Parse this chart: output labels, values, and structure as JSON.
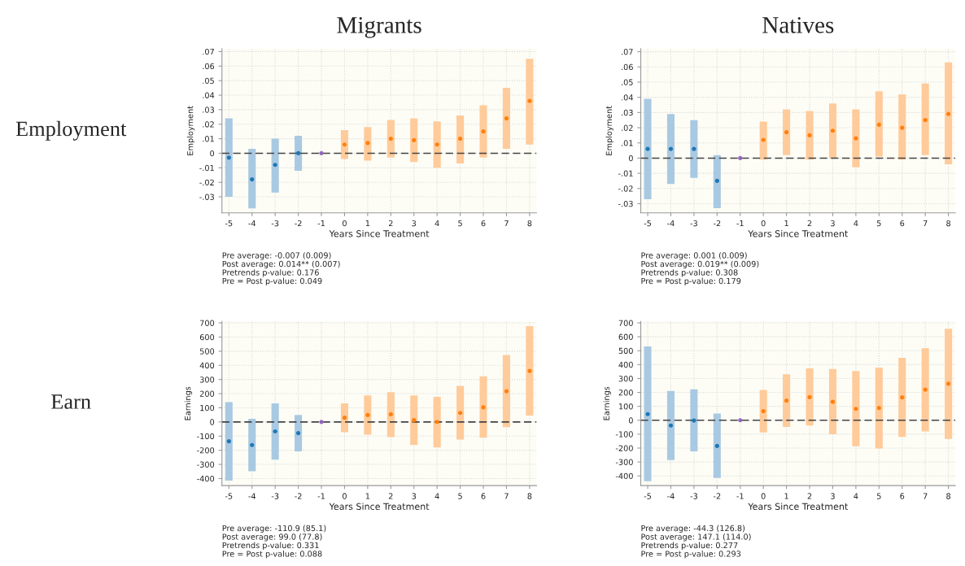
{
  "chart_data": [
    {
      "type": "bar",
      "title": "Migrants",
      "subtitle": "Employment",
      "xlabel": "Years Since Treatment",
      "ylabel": "Employment",
      "xlim": [
        -5.3,
        8.3
      ],
      "xticks": [
        -5,
        -4,
        -3,
        -2,
        -1,
        0,
        1,
        2,
        3,
        4,
        5,
        6,
        7,
        8
      ],
      "ylim": [
        -0.041,
        0.072
      ],
      "yticks": [
        {
          "value": -0.03,
          "label": "-.03"
        },
        {
          "value": -0.02,
          "label": "-.02"
        },
        {
          "value": -0.01,
          "label": "-.01"
        },
        0,
        {
          "value": 0.01,
          "label": ".01"
        },
        {
          "value": 0.02,
          "label": ".02"
        },
        {
          "value": 0.03,
          "label": ".03"
        },
        {
          "value": 0.04,
          "label": ".04"
        },
        {
          "value": 0.05,
          "label": ".05"
        },
        {
          "value": 0.06,
          "label": ".06"
        },
        {
          "value": 0.07,
          "label": ".07"
        }
      ],
      "grid": true,
      "marker": "circle",
      "ref_lines": [
        {
          "axis": "y",
          "value": 0,
          "color": "#444444",
          "line_style": "dashed"
        }
      ],
      "series": [
        {
          "color": "#a9c9e2",
          "x": [
            -5,
            -4,
            -3,
            -2
          ],
          "base": [
            -0.03,
            -0.038,
            -0.027,
            -0.012
          ],
          "values": [
            0.054,
            0.041,
            0.037,
            0.024
          ]
        },
        {
          "color": "#ffcb9a",
          "x": [
            0,
            1,
            2,
            3,
            4,
            5,
            6,
            7,
            8
          ],
          "base": [
            -0.004,
            -0.005,
            -0.003,
            -0.006,
            -0.01,
            -0.007,
            -0.003,
            0.003,
            0.006
          ],
          "values": [
            0.02,
            0.023,
            0.026,
            0.03,
            0.032,
            0.033,
            0.036,
            0.042,
            0.059
          ]
        },
        {
          "type": "scatter",
          "color": "#1f77b4",
          "x": [
            -5,
            -4,
            -3,
            -2
          ],
          "values": [
            -0.003,
            -0.018,
            -0.008,
            0.0
          ]
        },
        {
          "type": "scatter",
          "color": "#9467bd",
          "x": [
            -1
          ],
          "values": [
            0
          ]
        },
        {
          "type": "scatter",
          "color": "#ff7f0e",
          "x": [
            0,
            1,
            2,
            3,
            4,
            5,
            6,
            7,
            8
          ],
          "values": [
            0.006,
            0.007,
            0.01,
            0.009,
            0.006,
            0.01,
            0.015,
            0.024,
            0.036
          ]
        }
      ],
      "annotations": [
        "Pre average: -0.007 (0.009)",
        "Post average: 0.014** (0.007)",
        "Pretrends p-value: 0.176",
        "Pre = Post p-value: 0.049"
      ]
    },
    {
      "type": "bar",
      "title": "Natives",
      "xlabel": "Years Since Treatment",
      "ylabel": "Employment",
      "xlim": [
        -5.3,
        8.3
      ],
      "xticks": [
        -5,
        -4,
        -3,
        -2,
        -1,
        0,
        1,
        2,
        3,
        4,
        5,
        6,
        7,
        8
      ],
      "ylim": [
        -0.036,
        0.072
      ],
      "yticks": [
        {
          "value": -0.03,
          "label": "-.03"
        },
        {
          "value": -0.02,
          "label": "-.02"
        },
        {
          "value": -0.01,
          "label": "-.01"
        },
        0,
        {
          "value": 0.01,
          "label": ".01"
        },
        {
          "value": 0.02,
          "label": ".02"
        },
        {
          "value": 0.03,
          "label": ".03"
        },
        {
          "value": 0.04,
          "label": ".04"
        },
        {
          "value": 0.05,
          "label": ".05"
        },
        {
          "value": 0.06,
          "label": ".06"
        },
        {
          "value": 0.07,
          "label": ".07"
        }
      ],
      "grid": true,
      "marker": "circle",
      "ref_lines": [
        {
          "axis": "y",
          "value": 0,
          "color": "#444444",
          "line_style": "dashed"
        }
      ],
      "series": [
        {
          "color": "#a9c9e2",
          "x": [
            -5,
            -4,
            -3,
            -2
          ],
          "base": [
            -0.027,
            -0.017,
            -0.013,
            -0.033
          ],
          "values": [
            0.066,
            0.046,
            0.038,
            0.035
          ]
        },
        {
          "color": "#ffcb9a",
          "x": [
            0,
            1,
            2,
            3,
            4,
            5,
            6,
            7,
            8
          ],
          "base": [
            -0.001,
            0.002,
            -0.001,
            0.0,
            -0.006,
            0.001,
            -0.001,
            0.002,
            -0.004
          ],
          "values": [
            0.025,
            0.03,
            0.032,
            0.036,
            0.038,
            0.043,
            0.043,
            0.047,
            0.067
          ]
        },
        {
          "type": "scatter",
          "color": "#1f77b4",
          "x": [
            -5,
            -4,
            -3,
            -2
          ],
          "values": [
            0.006,
            0.006,
            0.006,
            -0.015
          ]
        },
        {
          "type": "scatter",
          "color": "#9467bd",
          "x": [
            -1
          ],
          "values": [
            0
          ]
        },
        {
          "type": "scatter",
          "color": "#ff7f0e",
          "x": [
            0,
            1,
            2,
            3,
            4,
            5,
            6,
            7,
            8
          ],
          "values": [
            0.012,
            0.017,
            0.015,
            0.018,
            0.013,
            0.022,
            0.02,
            0.025,
            0.029
          ]
        }
      ],
      "annotations": [
        "Pre average: 0.001 (0.009)",
        "Post average: 0.019** (0.009)",
        "Pretrends p-value: 0.308",
        "Pre = Post p-value: 0.179"
      ]
    },
    {
      "type": "bar",
      "subtitle": "Earn",
      "xlabel": "Years Since Treatment",
      "ylabel": "Earnings",
      "xlim": [
        -5.3,
        8.3
      ],
      "xticks": [
        -5,
        -4,
        -3,
        -2,
        -1,
        0,
        1,
        2,
        3,
        4,
        5,
        6,
        7,
        8
      ],
      "ylim": [
        -450,
        710
      ],
      "yticks": [
        -400,
        -300,
        -200,
        -100,
        0,
        100,
        200,
        300,
        400,
        500,
        600,
        700
      ],
      "grid": true,
      "marker": "circle",
      "ref_lines": [
        {
          "axis": "y",
          "value": 0,
          "color": "#444444",
          "line_style": "dashed"
        }
      ],
      "series": [
        {
          "color": "#a9c9e2",
          "x": [
            -5,
            -4,
            -3,
            -2
          ],
          "base": [
            -414,
            -348,
            -266,
            -208
          ],
          "values": [
            554,
            370,
            397,
            257
          ]
        },
        {
          "color": "#ffcb9a",
          "x": [
            0,
            1,
            2,
            3,
            4,
            5,
            6,
            7,
            8
          ],
          "base": [
            -73,
            -90,
            -107,
            -163,
            -180,
            -125,
            -112,
            -37,
            45
          ],
          "values": [
            204,
            277,
            317,
            350,
            358,
            380,
            434,
            511,
            633
          ]
        },
        {
          "type": "scatter",
          "color": "#1f77b4",
          "x": [
            -5,
            -4,
            -3,
            -2
          ],
          "values": [
            -137,
            -163,
            -67,
            -79
          ]
        },
        {
          "type": "scatter",
          "color": "#9467bd",
          "x": [
            -1
          ],
          "values": [
            0
          ]
        },
        {
          "type": "scatter",
          "color": "#ff7f0e",
          "x": [
            0,
            1,
            2,
            3,
            4,
            5,
            6,
            7,
            8
          ],
          "values": [
            30,
            49,
            54,
            13,
            0,
            64,
            103,
            217,
            361
          ]
        }
      ],
      "annotations": [
        "Pre average: -110.9 (85.1)",
        "Post average: 99.0 (77.8)",
        "Pretrends p-value: 0.331",
        "Pre = Post p-value: 0.088"
      ]
    },
    {
      "type": "bar",
      "xlabel": "Years Since Treatment",
      "ylabel": "Earnings",
      "xlim": [
        -5.3,
        8.3
      ],
      "xticks": [
        -5,
        -4,
        -3,
        -2,
        -1,
        0,
        1,
        2,
        3,
        4,
        5,
        6,
        7,
        8
      ],
      "ylim": [
        -470,
        710
      ],
      "yticks": [
        -400,
        -300,
        -200,
        -100,
        0,
        100,
        200,
        300,
        400,
        500,
        600,
        700
      ],
      "grid": true,
      "marker": "circle",
      "ref_lines": [
        {
          "axis": "y",
          "value": 0,
          "color": "#444444",
          "line_style": "dashed"
        }
      ],
      "series": [
        {
          "color": "#a9c9e2",
          "x": [
            -5,
            -4,
            -3,
            -2
          ],
          "base": [
            -438,
            -287,
            -224,
            -415
          ],
          "values": [
            968,
            497,
            446,
            463
          ]
        },
        {
          "color": "#ffcb9a",
          "x": [
            0,
            1,
            2,
            3,
            4,
            5,
            6,
            7,
            8
          ],
          "base": [
            -88,
            -48,
            -38,
            -101,
            -187,
            -203,
            -119,
            -80,
            -134
          ],
          "values": [
            306,
            379,
            411,
            470,
            541,
            582,
            568,
            598,
            792
          ]
        },
        {
          "type": "scatter",
          "color": "#1f77b4",
          "x": [
            -5,
            -4,
            -3,
            -2
          ],
          "values": [
            44,
            -38,
            -2,
            -185
          ]
        },
        {
          "type": "scatter",
          "color": "#9467bd",
          "x": [
            -1
          ],
          "values": [
            0
          ]
        },
        {
          "type": "scatter",
          "color": "#ff7f0e",
          "x": [
            0,
            1,
            2,
            3,
            4,
            5,
            6,
            7,
            8
          ],
          "values": [
            65,
            141,
            166,
            132,
            82,
            88,
            164,
            220,
            262
          ]
        }
      ],
      "annotations": [
        "Pre average: -44.3 (126.8)",
        "Post average: 147.1 (114.0)",
        "Pretrends p-value: 0.277",
        "Pre = Post p-value: 0.293"
      ]
    }
  ]
}
